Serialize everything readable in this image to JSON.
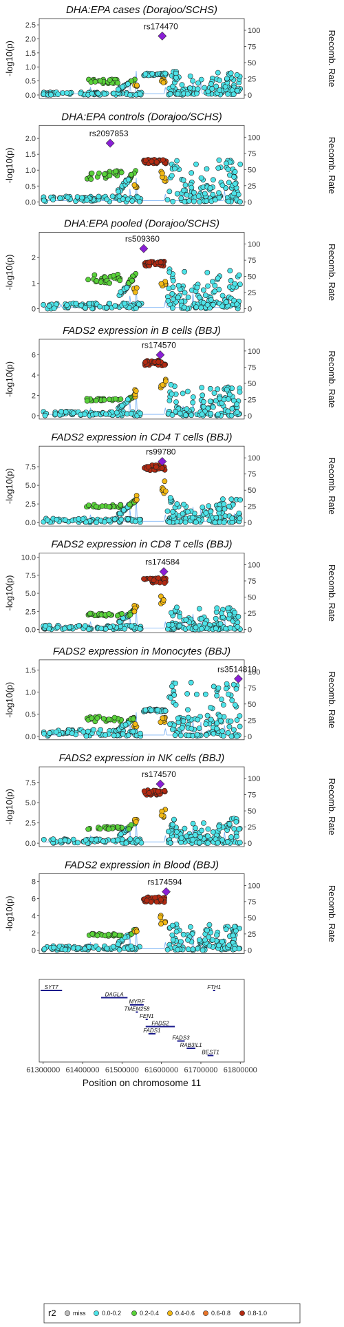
{
  "chart_data": {
    "type": "scatter",
    "x_axis": {
      "label": "Position on chromosome 11",
      "ticks": [
        "61300000",
        "61400000",
        "61500000",
        "61600000",
        "61700000",
        "61800000"
      ],
      "range": [
        61290000,
        61810000
      ]
    },
    "y_label": "-log10(p)",
    "y2_label": "Recomb. Rate",
    "y2_ticks": [
      "0",
      "25",
      "50",
      "75",
      "100"
    ],
    "panels": [
      {
        "title": "DHA:EPA cases (Dorajoo/SCHS)",
        "lead_snp": "rs174470",
        "lead_x": 61602000,
        "lead_y": 2.1,
        "ymax": 2.6,
        "yticks": [
          "0.0",
          "0.5",
          "1.0",
          "1.5",
          "2.0",
          "2.5"
        ],
        "peak_in": 0.75,
        "peak_out": 0.8,
        "profile": "cases"
      },
      {
        "title": "DHA:EPA controls (Dorajoo/SCHS)",
        "lead_snp": "rs2097853",
        "lead_x": 61470000,
        "lead_y": 1.85,
        "ymax": 2.3,
        "yticks": [
          "0.0",
          "0.5",
          "1.0",
          "1.5",
          "2.0"
        ],
        "peak_in": 1.3,
        "peak_out": 1.4,
        "profile": "controls"
      },
      {
        "title": "DHA:EPA pooled (Dorajoo/SCHS)",
        "lead_snp": "rs509360",
        "lead_x": 61555000,
        "lead_y": 2.35,
        "ymax": 2.85,
        "yticks": [
          "0",
          "1",
          "2"
        ],
        "peak_in": 1.8,
        "peak_out": 1.5,
        "profile": "pooled"
      },
      {
        "title": "FADS2 expression in B cells (BBJ)",
        "lead_snp": "rs174570",
        "lead_x": 61597000,
        "lead_y": 6.0,
        "ymax": 7.2,
        "yticks": [
          "0",
          "2",
          "4",
          "6"
        ],
        "peak_in": 5.3,
        "peak_out": 3.0,
        "profile": "eqtl"
      },
      {
        "title": "FADS2 expression in CD4 T cells (BBJ)",
        "lead_snp": "rs99780",
        "lead_x": 61602000,
        "lead_y": 8.2,
        "ymax": 9.8,
        "yticks": [
          "0.0",
          "2.5",
          "5.0",
          "7.5"
        ],
        "peak_in": 7.5,
        "peak_out": 3.2,
        "profile": "eqtl"
      },
      {
        "title": "FADS2 expression in CD8 T cells (BBJ)",
        "lead_snp": "rs174584",
        "lead_x": 61606000,
        "lead_y": 8.0,
        "ymax": 10.1,
        "yticks": [
          "0.0",
          "2.5",
          "5.0",
          "7.5",
          "10.0"
        ],
        "peak_in": 6.9,
        "peak_out": 3.0,
        "profile": "eqtl"
      },
      {
        "title": "FADS2 expression in Monocytes (BBJ)",
        "lead_snp": "rs3514810",
        "lead_x": 61795000,
        "lead_y": 1.3,
        "ymax": 1.65,
        "yticks": [
          "0.0",
          "0.5",
          "1.0",
          "1.5"
        ],
        "peak_in": 0.6,
        "peak_out": 1.2,
        "profile": "mono"
      },
      {
        "title": "FADS2 expression in NK cells (BBJ)",
        "lead_snp": "rs174570",
        "lead_x": 61597000,
        "lead_y": 7.3,
        "ymax": 9.0,
        "yticks": [
          "0.0",
          "2.5",
          "5.0",
          "7.5"
        ],
        "peak_in": 6.4,
        "peak_out": 3.0,
        "profile": "eqtl"
      },
      {
        "title": "FADS2 expression in Blood (BBJ)",
        "lead_snp": "rs174594",
        "lead_x": 61612000,
        "lead_y": 6.8,
        "ymax": 8.5,
        "yticks": [
          "0",
          "2",
          "4",
          "6",
          "8"
        ],
        "peak_in": 6.0,
        "peak_out": 3.0,
        "profile": "eqtl"
      }
    ],
    "genes": [
      {
        "name": "SYT7",
        "start": 61282000,
        "end": 61348000,
        "row": 0
      },
      {
        "name": "DAGLA",
        "start": 61447000,
        "end": 61514000,
        "row": 1
      },
      {
        "name": "MYRF",
        "start": 61520000,
        "end": 61555000,
        "row": 2
      },
      {
        "name": "TMEM258",
        "start": 61535000,
        "end": 61538000,
        "row": 3
      },
      {
        "name": "FEN1",
        "start": 61560000,
        "end": 61565000,
        "row": 4
      },
      {
        "name": "FADS2",
        "start": 61560000,
        "end": 61634000,
        "row": 5
      },
      {
        "name": "FADS1",
        "start": 61567000,
        "end": 61585000,
        "row": 6
      },
      {
        "name": "FADS3",
        "start": 61640000,
        "end": 61659000,
        "row": 7
      },
      {
        "name": "RAB3IL1",
        "start": 61664000,
        "end": 61686000,
        "row": 8
      },
      {
        "name": "BEST1",
        "start": 61717000,
        "end": 61732000,
        "row": 9
      },
      {
        "name": "FTH1",
        "start": 61731000,
        "end": 61735000,
        "row": 0
      }
    ],
    "legend": {
      "title": "r2",
      "items": [
        {
          "label": "miss",
          "color": "#bdbdbd"
        },
        {
          "label": "0.0-0.2",
          "color": "#4de3e8"
        },
        {
          "label": "0.2-0.4",
          "color": "#59d23a"
        },
        {
          "label": "0.4-0.6",
          "color": "#f2b915"
        },
        {
          "label": "0.6-0.8",
          "color": "#e8742a"
        },
        {
          "label": "0.8-1.0",
          "color": "#b22a12"
        }
      ],
      "lead_color": "#8a1fd6",
      "recomb_color": "#7fb5f5"
    }
  }
}
